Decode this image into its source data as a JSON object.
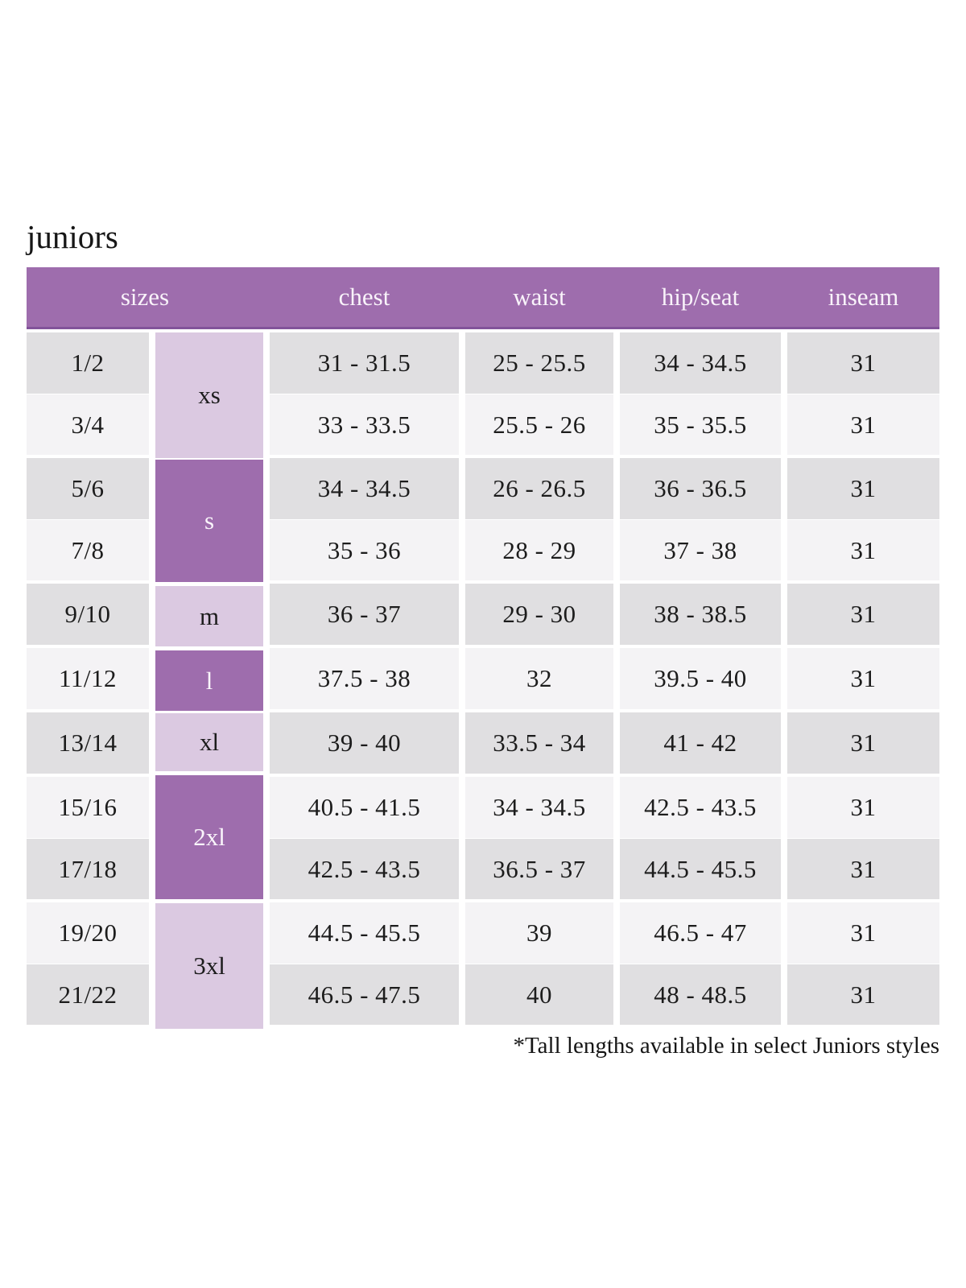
{
  "title": "juniors",
  "footnote": "*Tall lengths available in select Juniors styles",
  "colors": {
    "header_bg": "#9e6dad",
    "header_border": "#82539a",
    "letter_dark_bg": "#9e6dad",
    "letter_light_bg": "#dbc9e1",
    "row_gray_bg": "#e0dfe1",
    "row_light_bg": "#f4f3f5",
    "text_dark": "#1c1c1c",
    "text_light": "#f9f3fa"
  },
  "table": {
    "headers": {
      "sizes": "sizes",
      "chest": "chest",
      "waist": "waist",
      "hip_seat": "hip/seat",
      "inseam": "inseam"
    },
    "groups": [
      {
        "letter": "xs",
        "rows": [
          {
            "size": "1/2",
            "chest": "31 - 31.5",
            "waist": "25 - 25.5",
            "hip_seat": "34 - 34.5",
            "inseam": "31"
          },
          {
            "size": "3/4",
            "chest": "33 - 33.5",
            "waist": "25.5 - 26",
            "hip_seat": "35 - 35.5",
            "inseam": "31"
          }
        ]
      },
      {
        "letter": "s",
        "rows": [
          {
            "size": "5/6",
            "chest": "34 - 34.5",
            "waist": "26 - 26.5",
            "hip_seat": "36 - 36.5",
            "inseam": "31"
          },
          {
            "size": "7/8",
            "chest": "35 - 36",
            "waist": "28 - 29",
            "hip_seat": "37 - 38",
            "inseam": "31"
          }
        ]
      },
      {
        "letter": "m",
        "rows": [
          {
            "size": "9/10",
            "chest": "36 - 37",
            "waist": "29 - 30",
            "hip_seat": "38 - 38.5",
            "inseam": "31"
          }
        ]
      },
      {
        "letter": "l",
        "rows": [
          {
            "size": "11/12",
            "chest": "37.5 - 38",
            "waist": "32",
            "hip_seat": "39.5 - 40",
            "inseam": "31"
          }
        ]
      },
      {
        "letter": "xl",
        "rows": [
          {
            "size": "13/14",
            "chest": "39 - 40",
            "waist": "33.5 - 34",
            "hip_seat": "41 - 42",
            "inseam": "31"
          }
        ]
      },
      {
        "letter": "2xl",
        "rows": [
          {
            "size": "15/16",
            "chest": "40.5 - 41.5",
            "waist": "34 - 34.5",
            "hip_seat": "42.5 - 43.5",
            "inseam": "31"
          },
          {
            "size": "17/18",
            "chest": "42.5 - 43.5",
            "waist": "36.5 - 37",
            "hip_seat": "44.5 - 45.5",
            "inseam": "31"
          }
        ]
      },
      {
        "letter": "3xl",
        "rows": [
          {
            "size": "19/20",
            "chest": "44.5 - 45.5",
            "waist": "39",
            "hip_seat": "46.5 - 47",
            "inseam": "31"
          },
          {
            "size": "21/22",
            "chest": "46.5 - 47.5",
            "waist": "40",
            "hip_seat": "48 - 48.5",
            "inseam": "31"
          }
        ]
      }
    ]
  }
}
